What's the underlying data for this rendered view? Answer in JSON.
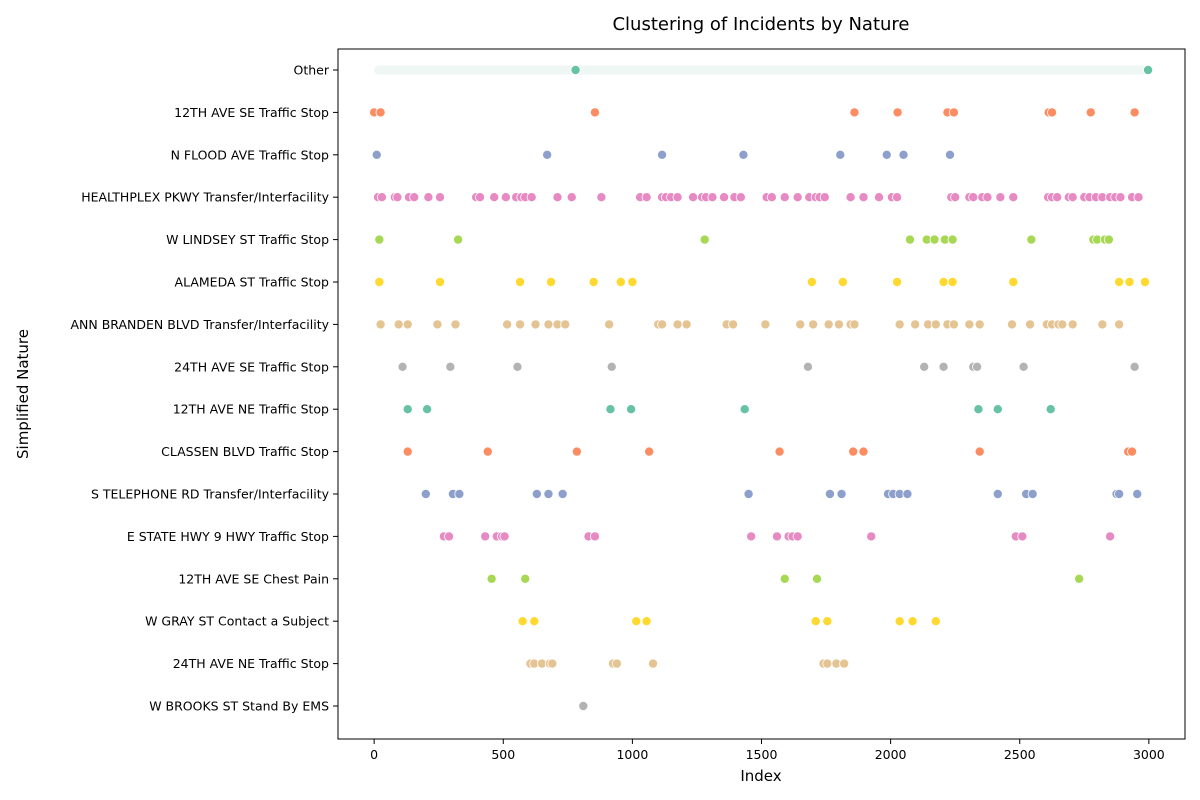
{
  "chart_data": {
    "type": "scatter",
    "title": "Clustering of Incidents by Nature",
    "xlabel": "Index",
    "ylabel": "Simplified Nature",
    "xlim": [
      -140,
      3140
    ],
    "x_ticks": [
      0,
      500,
      1000,
      1500,
      2000,
      2500,
      3000
    ],
    "grid": false,
    "categories": [
      "Other",
      "12TH AVE SE Traffic Stop",
      "N FLOOD AVE Traffic Stop",
      "HEALTHPLEX PKWY Transfer/Interfacility",
      "W LINDSEY ST Traffic Stop",
      "ALAMEDA ST Traffic Stop",
      "ANN BRANDEN BLVD Transfer/Interfacility",
      "24TH AVE SE Traffic Stop",
      "12TH AVE NE Traffic Stop",
      "CLASSEN BLVD Traffic Stop",
      "S TELEPHONE RD Transfer/Interfacility",
      "E STATE HWY 9 HWY Traffic Stop",
      "12TH AVE SE Chest Pain",
      "W GRAY ST Contact a Subject",
      "24TH AVE NE Traffic Stop",
      "W BROOKS ST Stand By EMS"
    ],
    "colors": [
      "#66c2a5",
      "#fc8d62",
      "#8da0cb",
      "#e78ac3",
      "#a6d854",
      "#ffd92f",
      "#e5c494",
      "#b3b3b3"
    ],
    "other_range": [
      0,
      2997
    ],
    "series_points": [
      [
        780,
        2997
      ],
      [
        0,
        25,
        855,
        1860,
        2027,
        2220,
        2245,
        2612,
        2625,
        2775,
        2945
      ],
      [
        10,
        670,
        1115,
        1430,
        1805,
        1985,
        2050,
        2230
      ],
      [
        15,
        30,
        80,
        90,
        135,
        155,
        210,
        255,
        395,
        410,
        465,
        510,
        550,
        570,
        585,
        610,
        710,
        765,
        880,
        1030,
        1055,
        1115,
        1130,
        1150,
        1175,
        1235,
        1270,
        1285,
        1310,
        1355,
        1395,
        1420,
        1520,
        1540,
        1590,
        1640,
        1685,
        1710,
        1725,
        1745,
        1845,
        1895,
        1955,
        2005,
        2025,
        2235,
        2250,
        2305,
        2320,
        2355,
        2375,
        2425,
        2475,
        2610,
        2625,
        2645,
        2690,
        2705,
        2750,
        2770,
        2795,
        2820,
        2850,
        2870,
        2890,
        2935,
        2960
      ],
      [
        20,
        325,
        1280,
        2075,
        2140,
        2170,
        2210,
        2240,
        2545,
        2785,
        2800,
        2830,
        2845
      ],
      [
        20,
        255,
        565,
        685,
        850,
        955,
        1000,
        1695,
        1815,
        2025,
        2205,
        2240,
        2475,
        2885,
        2925,
        2985
      ],
      [
        25,
        95,
        130,
        245,
        315,
        515,
        565,
        625,
        675,
        710,
        740,
        910,
        1100,
        1115,
        1175,
        1210,
        1365,
        1390,
        1515,
        1650,
        1700,
        1760,
        1800,
        1845,
        1860,
        2035,
        2095,
        2145,
        2175,
        2220,
        2245,
        2305,
        2345,
        2470,
        2540,
        2605,
        2625,
        2650,
        2665,
        2705,
        2820,
        2885
      ],
      [
        110,
        295,
        555,
        920,
        1680,
        2130,
        2205,
        2320,
        2335,
        2515,
        2945
      ],
      [
        130,
        205,
        915,
        995,
        1435,
        2340,
        2415,
        2620
      ],
      [
        130,
        440,
        785,
        1065,
        1570,
        1855,
        1895,
        2345,
        2920,
        2935
      ],
      [
        200,
        305,
        330,
        630,
        675,
        730,
        1450,
        1765,
        1810,
        1990,
        2010,
        2035,
        2065,
        2415,
        2525,
        2550,
        2875,
        2885,
        2955
      ],
      [
        270,
        290,
        430,
        475,
        495,
        505,
        830,
        855,
        1460,
        1560,
        1605,
        1620,
        1640,
        1925,
        2485,
        2510,
        2850
      ],
      [
        455,
        585,
        1590,
        1715,
        2730
      ],
      [
        575,
        620,
        1015,
        1055,
        1710,
        1755,
        2035,
        2085,
        2175
      ],
      [
        605,
        620,
        650,
        680,
        690,
        925,
        940,
        1080,
        1740,
        1755,
        1790,
        1820
      ],
      [
        810
      ]
    ]
  }
}
